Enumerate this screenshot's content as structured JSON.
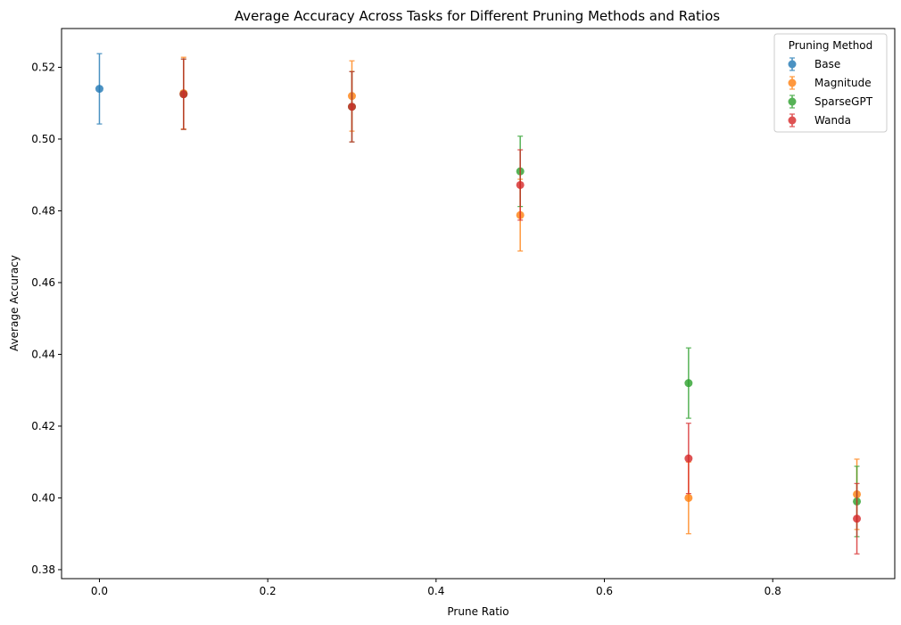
{
  "chart_data": {
    "type": "scatter",
    "title": "Average Accuracy Across Tasks for Different Pruning Methods and Ratios",
    "xlabel": "Prune Ratio",
    "ylabel": "Average Accuracy",
    "xlim": [
      -0.045,
      0.945
    ],
    "ylim": [
      0.3775,
      0.5308
    ],
    "xticks": [
      0.0,
      0.2,
      0.4,
      0.6,
      0.8
    ],
    "xtick_labels": [
      "0.0",
      "0.2",
      "0.4",
      "0.6",
      "0.8"
    ],
    "yticks": [
      0.38,
      0.4,
      0.42,
      0.44,
      0.46,
      0.48,
      0.5,
      0.52
    ],
    "ytick_labels": [
      "0.38",
      "0.40",
      "0.42",
      "0.44",
      "0.46",
      "0.48",
      "0.50",
      "0.52"
    ],
    "error_bars": true,
    "grid": false,
    "legend": {
      "title": "Pruning Method",
      "placement": "top-right"
    },
    "series": [
      {
        "name": "Base",
        "color": "#1f77b4",
        "points": [
          {
            "x": 0.0,
            "y": 0.514,
            "err": 0.0098
          }
        ]
      },
      {
        "name": "Magnitude",
        "color": "#ff7f0e",
        "points": [
          {
            "x": 0.1,
            "y": 0.5128,
            "err": 0.01
          },
          {
            "x": 0.3,
            "y": 0.512,
            "err": 0.0098
          },
          {
            "x": 0.5,
            "y": 0.4788,
            "err": 0.01
          },
          {
            "x": 0.7,
            "y": 0.4,
            "err": 0.01
          },
          {
            "x": 0.9,
            "y": 0.401,
            "err": 0.0098
          }
        ]
      },
      {
        "name": "SparseGPT",
        "color": "#2ca02c",
        "points": [
          {
            "x": 0.1,
            "y": 0.5125,
            "err": 0.0098
          },
          {
            "x": 0.3,
            "y": 0.509,
            "err": 0.0098
          },
          {
            "x": 0.5,
            "y": 0.491,
            "err": 0.0098
          },
          {
            "x": 0.7,
            "y": 0.432,
            "err": 0.0098
          },
          {
            "x": 0.9,
            "y": 0.399,
            "err": 0.0098
          }
        ]
      },
      {
        "name": "Wanda",
        "color": "#d62728",
        "points": [
          {
            "x": 0.1,
            "y": 0.5125,
            "err": 0.0098
          },
          {
            "x": 0.3,
            "y": 0.509,
            "err": 0.0098
          },
          {
            "x": 0.5,
            "y": 0.4872,
            "err": 0.0098
          },
          {
            "x": 0.7,
            "y": 0.411,
            "err": 0.0098
          },
          {
            "x": 0.9,
            "y": 0.3942,
            "err": 0.0098
          }
        ]
      }
    ]
  }
}
